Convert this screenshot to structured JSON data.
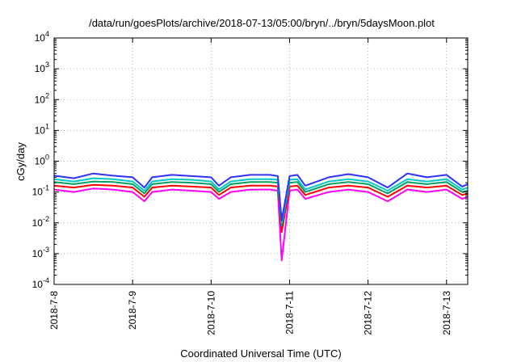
{
  "chart_data": {
    "type": "line",
    "title": "/data/run/goesPlots/archive/2018-07-13/05:00/bryn/../bryn/5daysMoon.plot",
    "xlabel": "Coordinated Universal Time (UTC)",
    "ylabel": "cGy/day",
    "yscale": "log",
    "ylim": [
      0.0001,
      10000
    ],
    "y_ticks": [
      {
        "value": 0.0001,
        "base": "10",
        "exp": "-4"
      },
      {
        "value": 0.001,
        "base": "10",
        "exp": "-3"
      },
      {
        "value": 0.01,
        "base": "10",
        "exp": "-2"
      },
      {
        "value": 0.1,
        "base": "10",
        "exp": "-1"
      },
      {
        "value": 1,
        "base": "10",
        "exp": "0"
      },
      {
        "value": 10,
        "base": "10",
        "exp": "1"
      },
      {
        "value": 100,
        "base": "10",
        "exp": "2"
      },
      {
        "value": 1000,
        "base": "10",
        "exp": "3"
      },
      {
        "value": 10000,
        "base": "10",
        "exp": "4"
      }
    ],
    "x_ticks": [
      "2018-7-8",
      "2018-7-9",
      "2018-7-10",
      "2018-7-11",
      "2018-7-12",
      "2018-7-13"
    ],
    "x_range_days": [
      0,
      5.27
    ],
    "grid": true,
    "legend": "none",
    "series": [
      {
        "color": "#ff00ff",
        "x": [
          0,
          0.25,
          0.5,
          0.75,
          1.0,
          1.15,
          1.25,
          1.5,
          1.75,
          2.0,
          2.1,
          2.25,
          2.5,
          2.75,
          2.85,
          2.9,
          3.0,
          3.1,
          3.2,
          3.5,
          3.75,
          4.0,
          4.25,
          4.5,
          4.75,
          5.0,
          5.2,
          5.27
        ],
        "y": [
          0.12,
          0.1,
          0.13,
          0.12,
          0.1,
          0.05,
          0.1,
          0.12,
          0.11,
          0.1,
          0.06,
          0.1,
          0.12,
          0.12,
          0.11,
          0.0006,
          0.11,
          0.12,
          0.06,
          0.1,
          0.12,
          0.1,
          0.05,
          0.12,
          0.1,
          0.12,
          0.06,
          0.07
        ]
      },
      {
        "color": "#ff0000",
        "x": [
          0,
          0.25,
          0.5,
          0.75,
          1.0,
          1.15,
          1.25,
          1.5,
          1.75,
          2.0,
          2.1,
          2.25,
          2.5,
          2.75,
          2.85,
          2.9,
          3.0,
          3.1,
          3.2,
          3.5,
          3.75,
          4.0,
          4.25,
          4.5,
          4.75,
          5.0,
          5.2,
          5.27
        ],
        "y": [
          0.16,
          0.14,
          0.17,
          0.16,
          0.14,
          0.07,
          0.14,
          0.16,
          0.15,
          0.14,
          0.08,
          0.14,
          0.16,
          0.16,
          0.15,
          0.005,
          0.15,
          0.16,
          0.08,
          0.14,
          0.16,
          0.14,
          0.07,
          0.16,
          0.14,
          0.16,
          0.08,
          0.09
        ]
      },
      {
        "color": "#00a060",
        "x": [
          0,
          0.25,
          0.5,
          0.75,
          1.0,
          1.15,
          1.25,
          1.5,
          1.75,
          2.0,
          2.1,
          2.25,
          2.5,
          2.75,
          2.85,
          2.9,
          3.0,
          3.1,
          3.2,
          3.5,
          3.75,
          4.0,
          4.25,
          4.5,
          4.75,
          5.0,
          5.2,
          5.27
        ],
        "y": [
          0.21,
          0.18,
          0.22,
          0.21,
          0.18,
          0.09,
          0.18,
          0.21,
          0.2,
          0.18,
          0.1,
          0.18,
          0.21,
          0.21,
          0.2,
          0.008,
          0.2,
          0.21,
          0.1,
          0.18,
          0.21,
          0.18,
          0.09,
          0.21,
          0.18,
          0.21,
          0.1,
          0.11
        ]
      },
      {
        "color": "#00c8c8",
        "x": [
          0,
          0.25,
          0.5,
          0.75,
          1.0,
          1.15,
          1.25,
          1.5,
          1.75,
          2.0,
          2.1,
          2.25,
          2.5,
          2.75,
          2.85,
          2.9,
          3.0,
          3.1,
          3.2,
          3.5,
          3.75,
          4.0,
          4.25,
          4.5,
          4.75,
          5.0,
          5.2,
          5.27
        ],
        "y": [
          0.26,
          0.22,
          0.28,
          0.26,
          0.22,
          0.11,
          0.22,
          0.26,
          0.25,
          0.22,
          0.12,
          0.22,
          0.26,
          0.26,
          0.25,
          0.01,
          0.25,
          0.26,
          0.12,
          0.22,
          0.26,
          0.22,
          0.11,
          0.26,
          0.22,
          0.26,
          0.12,
          0.14
        ]
      },
      {
        "color": "#3030ff",
        "x": [
          0,
          0.25,
          0.5,
          0.75,
          1.0,
          1.15,
          1.25,
          1.5,
          1.75,
          2.0,
          2.1,
          2.25,
          2.5,
          2.75,
          2.85,
          2.9,
          3.0,
          3.1,
          3.2,
          3.5,
          3.75,
          4.0,
          4.25,
          4.5,
          4.75,
          5.0,
          5.2,
          5.27
        ],
        "y": [
          0.34,
          0.28,
          0.4,
          0.34,
          0.3,
          0.14,
          0.3,
          0.36,
          0.33,
          0.3,
          0.16,
          0.3,
          0.36,
          0.36,
          0.33,
          0.012,
          0.33,
          0.36,
          0.16,
          0.3,
          0.38,
          0.3,
          0.14,
          0.4,
          0.3,
          0.36,
          0.15,
          0.18
        ]
      }
    ]
  }
}
